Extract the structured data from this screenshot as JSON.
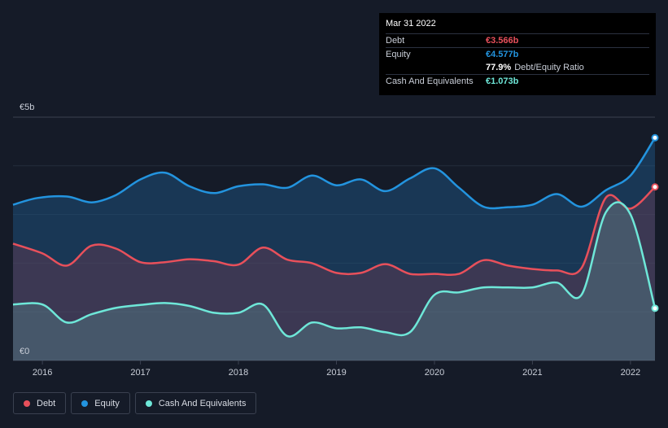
{
  "tooltip": {
    "date": "Mar 31 2022",
    "rows": [
      {
        "label": "Debt",
        "value": "€3.566b",
        "color": "#e8505b"
      },
      {
        "label": "Equity",
        "value": "€4.577b",
        "color": "#2394df"
      },
      {
        "label": "",
        "value": "77.9%",
        "extra": "Debt/Equity Ratio",
        "color": "#ffffff"
      },
      {
        "label": "Cash And Equivalents",
        "value": "€1.073b",
        "color": "#6ee7d8"
      }
    ]
  },
  "legend": {
    "debt": "Debt",
    "equity": "Equity",
    "cash": "Cash And Equivalents"
  },
  "chart_data": {
    "type": "area",
    "ylim": [
      0,
      5
    ],
    "xlim": [
      2015.7,
      2022.25
    ],
    "y_tick_labels": [
      {
        "value": 5,
        "label": "€5b"
      },
      {
        "value": 0,
        "label": "€0"
      }
    ],
    "x_ticks": [
      2016,
      2017,
      2018,
      2019,
      2020,
      2021,
      2022
    ],
    "grid": true,
    "legend_position": "bottom-left",
    "series": [
      {
        "name": "Equity",
        "color": "#2394df",
        "points": [
          [
            2015.7,
            3.2
          ],
          [
            2015.95,
            3.34
          ],
          [
            2016.25,
            3.37
          ],
          [
            2016.5,
            3.25
          ],
          [
            2016.75,
            3.4
          ],
          [
            2017.0,
            3.72
          ],
          [
            2017.25,
            3.86
          ],
          [
            2017.5,
            3.58
          ],
          [
            2017.75,
            3.44
          ],
          [
            2018.0,
            3.58
          ],
          [
            2018.25,
            3.62
          ],
          [
            2018.5,
            3.55
          ],
          [
            2018.75,
            3.8
          ],
          [
            2019.0,
            3.6
          ],
          [
            2019.25,
            3.72
          ],
          [
            2019.5,
            3.48
          ],
          [
            2019.75,
            3.74
          ],
          [
            2020.0,
            3.95
          ],
          [
            2020.25,
            3.55
          ],
          [
            2020.5,
            3.16
          ],
          [
            2020.75,
            3.15
          ],
          [
            2021.0,
            3.2
          ],
          [
            2021.25,
            3.42
          ],
          [
            2021.5,
            3.16
          ],
          [
            2021.75,
            3.5
          ],
          [
            2022.0,
            3.8
          ],
          [
            2022.25,
            4.577
          ]
        ]
      },
      {
        "name": "Debt",
        "color": "#e8505b",
        "points": [
          [
            2015.7,
            2.4
          ],
          [
            2016.0,
            2.2
          ],
          [
            2016.25,
            1.95
          ],
          [
            2016.5,
            2.36
          ],
          [
            2016.75,
            2.3
          ],
          [
            2017.0,
            2.02
          ],
          [
            2017.25,
            2.02
          ],
          [
            2017.5,
            2.08
          ],
          [
            2017.75,
            2.04
          ],
          [
            2018.0,
            1.97
          ],
          [
            2018.25,
            2.32
          ],
          [
            2018.5,
            2.07
          ],
          [
            2018.75,
            2.0
          ],
          [
            2019.0,
            1.8
          ],
          [
            2019.25,
            1.8
          ],
          [
            2019.5,
            1.98
          ],
          [
            2019.75,
            1.78
          ],
          [
            2020.0,
            1.78
          ],
          [
            2020.25,
            1.78
          ],
          [
            2020.5,
            2.06
          ],
          [
            2020.75,
            1.95
          ],
          [
            2021.0,
            1.88
          ],
          [
            2021.25,
            1.85
          ],
          [
            2021.5,
            1.9
          ],
          [
            2021.75,
            3.35
          ],
          [
            2022.0,
            3.12
          ],
          [
            2022.25,
            3.566
          ]
        ]
      },
      {
        "name": "Cash And Equivalents",
        "color": "#6ee7d8",
        "points": [
          [
            2015.7,
            1.15
          ],
          [
            2016.0,
            1.15
          ],
          [
            2016.25,
            0.78
          ],
          [
            2016.5,
            0.95
          ],
          [
            2016.75,
            1.08
          ],
          [
            2017.0,
            1.14
          ],
          [
            2017.25,
            1.18
          ],
          [
            2017.5,
            1.12
          ],
          [
            2017.75,
            0.98
          ],
          [
            2018.0,
            0.98
          ],
          [
            2018.25,
            1.15
          ],
          [
            2018.5,
            0.5
          ],
          [
            2018.75,
            0.78
          ],
          [
            2019.0,
            0.66
          ],
          [
            2019.25,
            0.68
          ],
          [
            2019.5,
            0.58
          ],
          [
            2019.75,
            0.58
          ],
          [
            2020.0,
            1.35
          ],
          [
            2020.25,
            1.4
          ],
          [
            2020.5,
            1.5
          ],
          [
            2020.75,
            1.5
          ],
          [
            2021.0,
            1.5
          ],
          [
            2021.25,
            1.6
          ],
          [
            2021.5,
            1.35
          ],
          [
            2021.75,
            3.05
          ],
          [
            2022.0,
            3.0
          ],
          [
            2022.25,
            1.073
          ]
        ]
      }
    ]
  }
}
